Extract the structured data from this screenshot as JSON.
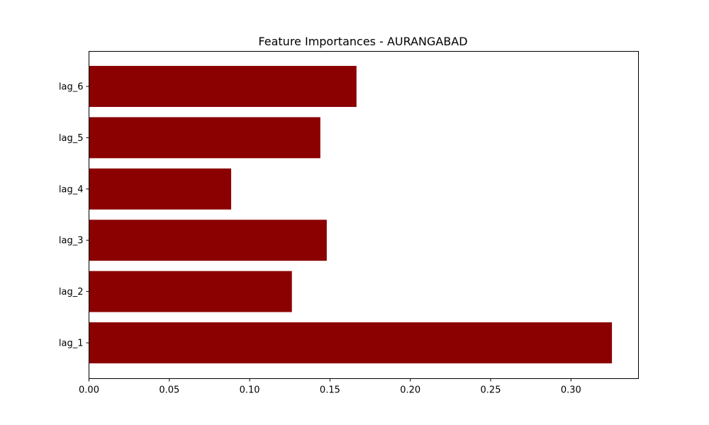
{
  "chart_data": {
    "type": "bar",
    "orientation": "horizontal",
    "title": "Feature Importances - AURANGABAD",
    "xlabel": "",
    "ylabel": "",
    "categories": [
      "lag_1",
      "lag_2",
      "lag_3",
      "lag_4",
      "lag_5",
      "lag_6"
    ],
    "values": [
      0.3255,
      0.1263,
      0.148,
      0.0885,
      0.144,
      0.1665
    ],
    "xlim": [
      0.0,
      0.342
    ],
    "xticks": [
      "0.00",
      "0.05",
      "0.10",
      "0.15",
      "0.20",
      "0.25",
      "0.30"
    ],
    "bar_color": "#8b0000",
    "grid": false
  }
}
